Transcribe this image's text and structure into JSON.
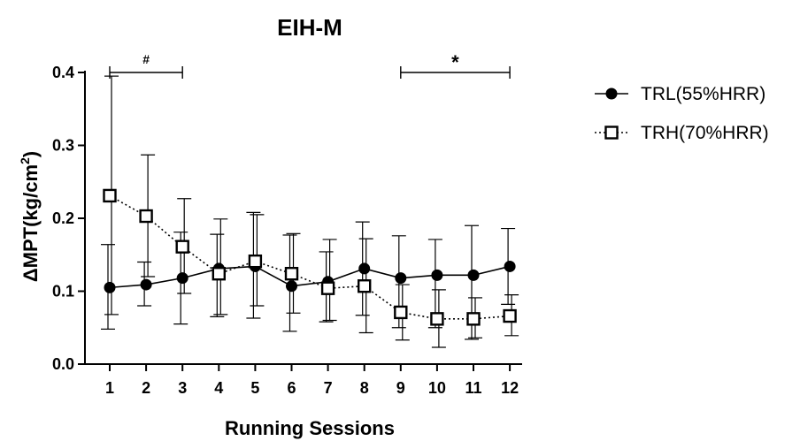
{
  "chart_data": {
    "type": "line",
    "title": "EIH-M",
    "xlabel": "Running Sessions",
    "ylabel_main": "ΔMPT(kg/cm",
    "ylabel_sup": "2",
    "ylabel_end": ")",
    "categories": [
      "1",
      "2",
      "3",
      "4",
      "5",
      "6",
      "7",
      "8",
      "9",
      "10",
      "11",
      "12"
    ],
    "ylim": [
      0.0,
      0.4
    ],
    "yticks": [
      "0.0",
      "0.1",
      "0.2",
      "0.3",
      "0.4"
    ],
    "ytick_values": [
      0.0,
      0.1,
      0.2,
      0.3,
      0.4
    ],
    "series": [
      {
        "name": "TRL(55%HRR)",
        "marker": "filled-circle",
        "line": "solid",
        "color": "#000000",
        "values": [
          0.105,
          0.109,
          0.118,
          0.131,
          0.134,
          0.107,
          0.113,
          0.131,
          0.118,
          0.122,
          0.122,
          0.134
        ],
        "error_upper": [
          0.164,
          0.14,
          0.181,
          0.178,
          0.208,
          0.177,
          0.154,
          0.195,
          0.176,
          0.171,
          0.19,
          0.186
        ],
        "error_lower": [
          0.048,
          0.08,
          0.055,
          0.065,
          0.063,
          0.045,
          0.058,
          0.067,
          0.05,
          0.05,
          0.034,
          0.082
        ]
      },
      {
        "name": "TRH(70%HRR)",
        "marker": "open-square",
        "line": "dotted",
        "color": "#000000",
        "values": [
          0.231,
          0.203,
          0.161,
          0.124,
          0.141,
          0.124,
          0.104,
          0.107,
          0.071,
          0.062,
          0.062,
          0.066
        ],
        "error_upper": [
          0.395,
          0.287,
          0.227,
          0.199,
          0.205,
          0.179,
          0.171,
          0.172,
          0.109,
          0.102,
          0.091,
          0.095
        ],
        "error_lower": [
          0.068,
          0.12,
          0.097,
          0.068,
          0.08,
          0.07,
          0.06,
          0.043,
          0.033,
          0.023,
          0.036,
          0.039
        ]
      }
    ],
    "annotations": [
      {
        "symbol": "#",
        "from": "1",
        "to": "3",
        "y": 0.4
      },
      {
        "symbol": "*",
        "from": "9",
        "to": "12",
        "y": 0.4
      }
    ],
    "grid": false,
    "legend_position": "right"
  }
}
